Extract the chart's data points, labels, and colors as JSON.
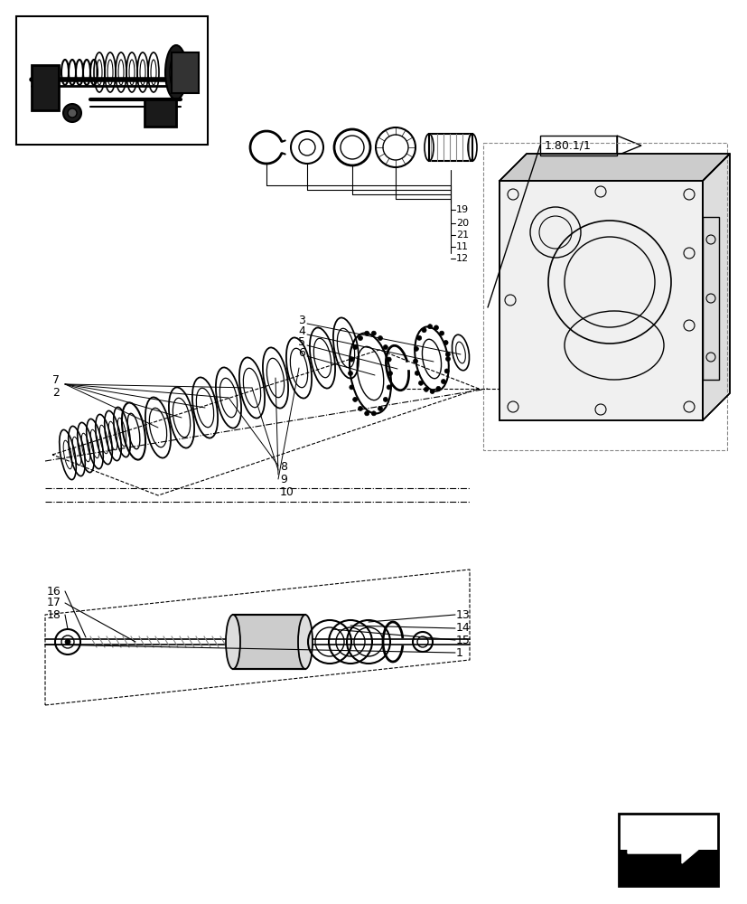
{
  "bg_color": "#ffffff",
  "lc": "#333333",
  "black": "#000000",
  "gray": "#888888",
  "lgray": "#cccccc",
  "dgray": "#444444",
  "ref_label": "1.80.1/1",
  "figsize": [
    8.28,
    10.0
  ],
  "dpi": 100
}
